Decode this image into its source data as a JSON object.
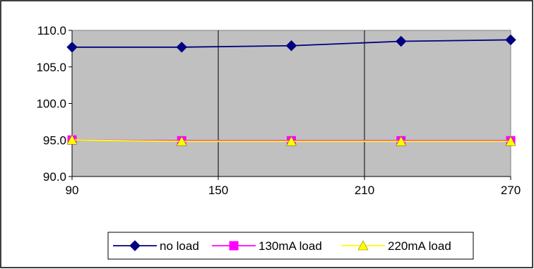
{
  "chart_data": {
    "type": "line",
    "title": "",
    "xlabel": "",
    "ylabel": "",
    "x": [
      90,
      135,
      180,
      225,
      270
    ],
    "xlim": [
      90,
      270
    ],
    "ylim": [
      90,
      110
    ],
    "x_ticks": [
      "90",
      "150",
      "210",
      "270"
    ],
    "y_ticks": [
      "110.0",
      "105.0",
      "100.0",
      "95.0",
      "90.0"
    ],
    "grid": "vertical gridlines",
    "legend_position": "bottom",
    "plot_background": "#c0c0c0",
    "series": [
      {
        "name": "no load",
        "color": "#000080",
        "marker": "diamond",
        "values": [
          107.7,
          107.7,
          107.9,
          108.5,
          108.7
        ]
      },
      {
        "name": "130mA load",
        "color": "#ff00ff",
        "marker": "square",
        "values": [
          95.0,
          94.9,
          94.9,
          94.9,
          94.9
        ]
      },
      {
        "name": "220mA load",
        "color": "#ffff00",
        "marker": "triangle",
        "values": [
          95.0,
          94.8,
          94.8,
          94.8,
          94.8
        ]
      }
    ]
  }
}
